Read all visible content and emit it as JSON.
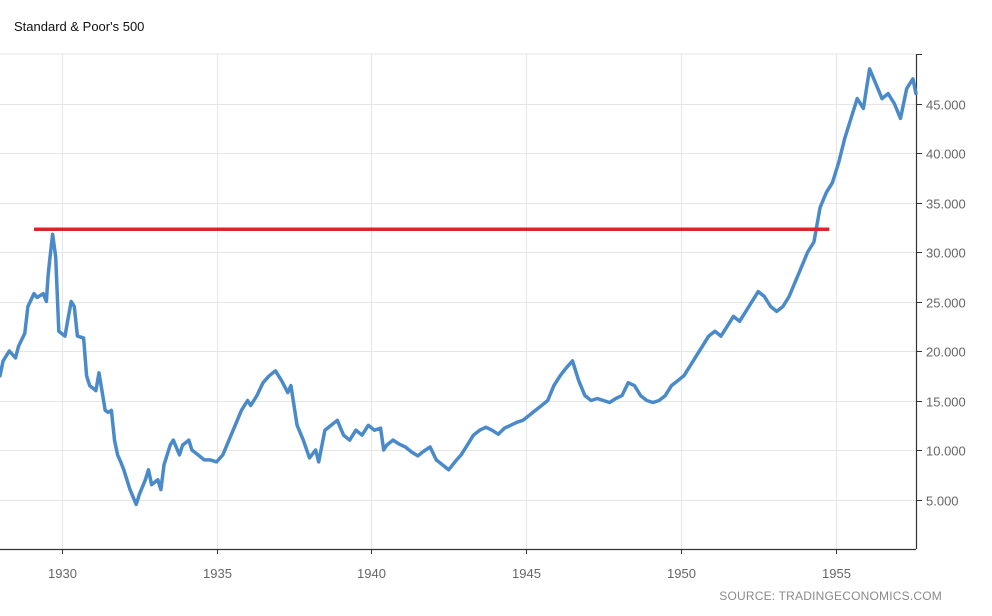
{
  "chart_data": {
    "type": "line",
    "title": "Standard & Poor's 500",
    "source": "SOURCE: TRADINGECONOMICS.COM",
    "xlabel": "",
    "ylabel": "",
    "xlim": [
      1928.0,
      1957.6
    ],
    "ylim": [
      0,
      50
    ],
    "x_ticks": [
      1930,
      1935,
      1940,
      1945,
      1950,
      1955
    ],
    "x_tick_labels": [
      "1930",
      "1935",
      "1940",
      "1945",
      "1950",
      "1955"
    ],
    "y_ticks": [
      5,
      10,
      15,
      20,
      25,
      30,
      35,
      40,
      45
    ],
    "y_tick_labels": [
      "5.000",
      "10.000",
      "15.000",
      "20.000",
      "25.000",
      "30.000",
      "35.000",
      "40.000",
      "45.000"
    ],
    "grid": true,
    "y_axis_side": "right",
    "colors": {
      "series": "#4a8ac9",
      "reference_line": "#d9262c",
      "grid": "#e6e6e6"
    },
    "series": [
      {
        "x": [
          1928.0,
          1928.1,
          1928.3,
          1928.5,
          1928.6,
          1928.8,
          1928.9,
          1929.1,
          1929.2,
          1929.4,
          1929.5,
          1929.55,
          1929.6,
          1929.7,
          1929.8,
          1929.9,
          1930.1,
          1930.2,
          1930.3,
          1930.4,
          1930.5,
          1930.7,
          1930.8,
          1930.9,
          1931.1,
          1931.2,
          1931.4,
          1931.5,
          1931.6,
          1931.7,
          1931.8,
          1931.9,
          1932.0,
          1932.2,
          1932.4,
          1932.5,
          1932.7,
          1932.8,
          1932.9,
          1933.1,
          1933.2,
          1933.3,
          1933.5,
          1933.6,
          1933.8,
          1933.9,
          1934.1,
          1934.2,
          1934.4,
          1934.6,
          1934.8,
          1935.0,
          1935.2,
          1935.4,
          1935.6,
          1935.8,
          1936.0,
          1936.1,
          1936.3,
          1936.5,
          1936.7,
          1936.9,
          1937.1,
          1937.3,
          1937.4,
          1937.6,
          1937.8,
          1938.0,
          1938.2,
          1938.3,
          1938.5,
          1938.7,
          1938.9,
          1939.1,
          1939.3,
          1939.5,
          1939.7,
          1939.9,
          1940.1,
          1940.3,
          1940.4,
          1940.5,
          1940.7,
          1940.9,
          1941.1,
          1941.3,
          1941.5,
          1941.7,
          1941.9,
          1942.1,
          1942.3,
          1942.5,
          1942.7,
          1942.9,
          1943.1,
          1943.3,
          1943.5,
          1943.7,
          1943.9,
          1944.1,
          1944.3,
          1944.5,
          1944.7,
          1944.9,
          1945.1,
          1945.3,
          1945.5,
          1945.7,
          1945.9,
          1946.1,
          1946.3,
          1946.5,
          1946.7,
          1946.9,
          1947.1,
          1947.3,
          1947.5,
          1947.7,
          1947.9,
          1948.1,
          1948.3,
          1948.5,
          1948.7,
          1948.9,
          1949.1,
          1949.3,
          1949.5,
          1949.7,
          1949.9,
          1950.1,
          1950.3,
          1950.5,
          1950.7,
          1950.9,
          1951.1,
          1951.3,
          1951.5,
          1951.7,
          1951.9,
          1952.1,
          1952.3,
          1952.5,
          1952.7,
          1952.9,
          1953.1,
          1953.3,
          1953.5,
          1953.7,
          1953.9,
          1954.1,
          1954.3,
          1954.5,
          1954.7,
          1954.9,
          1955.1,
          1955.3,
          1955.5,
          1955.7,
          1955.9,
          1956.1,
          1956.3,
          1956.5,
          1956.7,
          1956.9,
          1957.1,
          1957.3,
          1957.5,
          1957.6
        ],
        "values": [
          17.5,
          19.0,
          20.0,
          19.3,
          20.5,
          21.8,
          24.5,
          25.8,
          25.4,
          25.8,
          25.0,
          27.5,
          29.0,
          31.8,
          29.5,
          22.0,
          21.5,
          23.3,
          25.0,
          24.5,
          21.5,
          21.3,
          17.5,
          16.5,
          16.0,
          17.8,
          14.0,
          13.8,
          14.0,
          11.0,
          9.5,
          8.8,
          8.0,
          6.0,
          4.5,
          5.5,
          7.0,
          8.0,
          6.5,
          7.0,
          6.0,
          8.5,
          10.5,
          11.0,
          9.5,
          10.5,
          11.0,
          10.0,
          9.5,
          9.0,
          9.0,
          8.8,
          9.5,
          11.0,
          12.5,
          14.0,
          15.0,
          14.5,
          15.5,
          16.8,
          17.5,
          18.0,
          17.0,
          15.8,
          16.5,
          12.5,
          11.0,
          9.2,
          10.0,
          8.8,
          12.0,
          12.5,
          13.0,
          11.5,
          11.0,
          12.0,
          11.5,
          12.5,
          12.0,
          12.2,
          10.0,
          10.5,
          11.0,
          10.6,
          10.3,
          9.8,
          9.4,
          9.9,
          10.3,
          9.0,
          8.5,
          8.0,
          8.8,
          9.5,
          10.5,
          11.5,
          12.0,
          12.3,
          12.0,
          11.6,
          12.2,
          12.5,
          12.8,
          13.0,
          13.5,
          14.0,
          14.5,
          15.0,
          16.5,
          17.5,
          18.3,
          19.0,
          17.0,
          15.5,
          15.0,
          15.2,
          15.0,
          14.8,
          15.2,
          15.5,
          16.8,
          16.5,
          15.5,
          15.0,
          14.8,
          15.0,
          15.5,
          16.5,
          17.0,
          17.5,
          18.5,
          19.5,
          20.5,
          21.5,
          22.0,
          21.5,
          22.5,
          23.5,
          23.0,
          24.0,
          25.0,
          26.0,
          25.5,
          24.5,
          24.0,
          24.5,
          25.5,
          27.0,
          28.5,
          30.0,
          31.0,
          34.5,
          36.0,
          37.0,
          39.0,
          41.5,
          43.5,
          45.5,
          44.5,
          48.5,
          47.0,
          45.5,
          46.0,
          45.0,
          43.5,
          46.5,
          47.5,
          46.0
        ]
      }
    ],
    "reference_line": {
      "value": 32.3,
      "x_start": 1929.1,
      "x_end": 1954.8
    }
  }
}
